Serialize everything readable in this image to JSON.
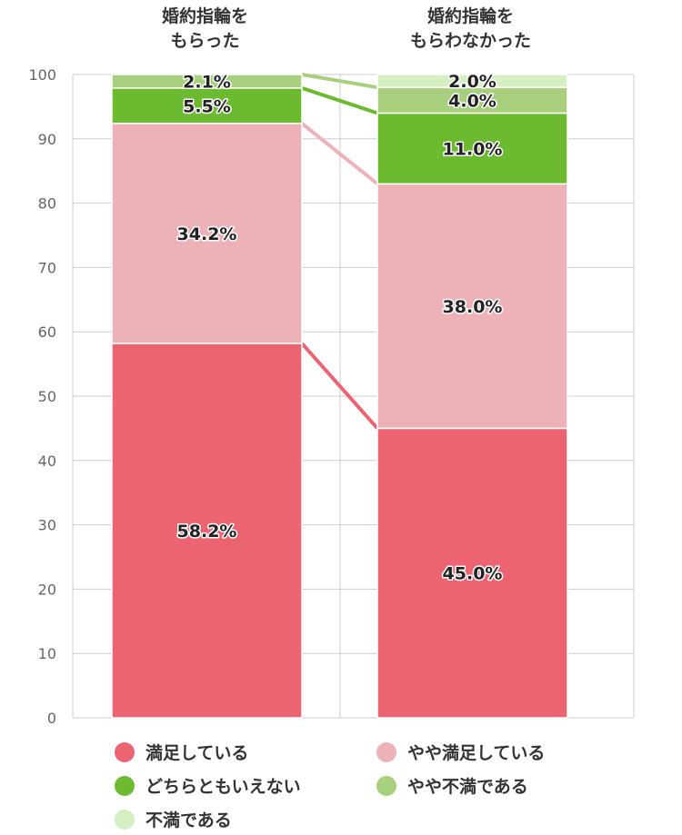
{
  "chart_data": {
    "type": "bar",
    "stacked": true,
    "categories": [
      [
        "婚約指輪を",
        "もらった"
      ],
      [
        "婚約指輪を",
        "もらわなかった"
      ]
    ],
    "ylim": [
      0,
      100
    ],
    "yticks": [
      0,
      10,
      20,
      30,
      40,
      50,
      60,
      70,
      80,
      90,
      100
    ],
    "grid": true,
    "legend_position": "bottom",
    "series": [
      {
        "name": "満足している",
        "color": "#ec6472",
        "values": [
          58.2,
          45.0
        ],
        "labels": [
          "58.2%",
          "45.0%"
        ]
      },
      {
        "name": "やや満足している",
        "color": "#ecb2b8",
        "values": [
          34.2,
          38.0
        ],
        "labels": [
          "34.2%",
          "38.0%"
        ]
      },
      {
        "name": "どちらともいえない",
        "color": "#6cba2f",
        "values": [
          5.5,
          11.0
        ],
        "labels": [
          "5.5%",
          "11.0%"
        ]
      },
      {
        "name": "やや不満である",
        "color": "#a8cf7e",
        "values": [
          2.1,
          4.0
        ],
        "labels": [
          "2.1%",
          "4.0%"
        ]
      },
      {
        "name": "不満である",
        "color": "#d6efc2",
        "values": [
          0.0,
          2.0
        ],
        "labels": [
          "",
          "2.0%"
        ]
      }
    ]
  }
}
